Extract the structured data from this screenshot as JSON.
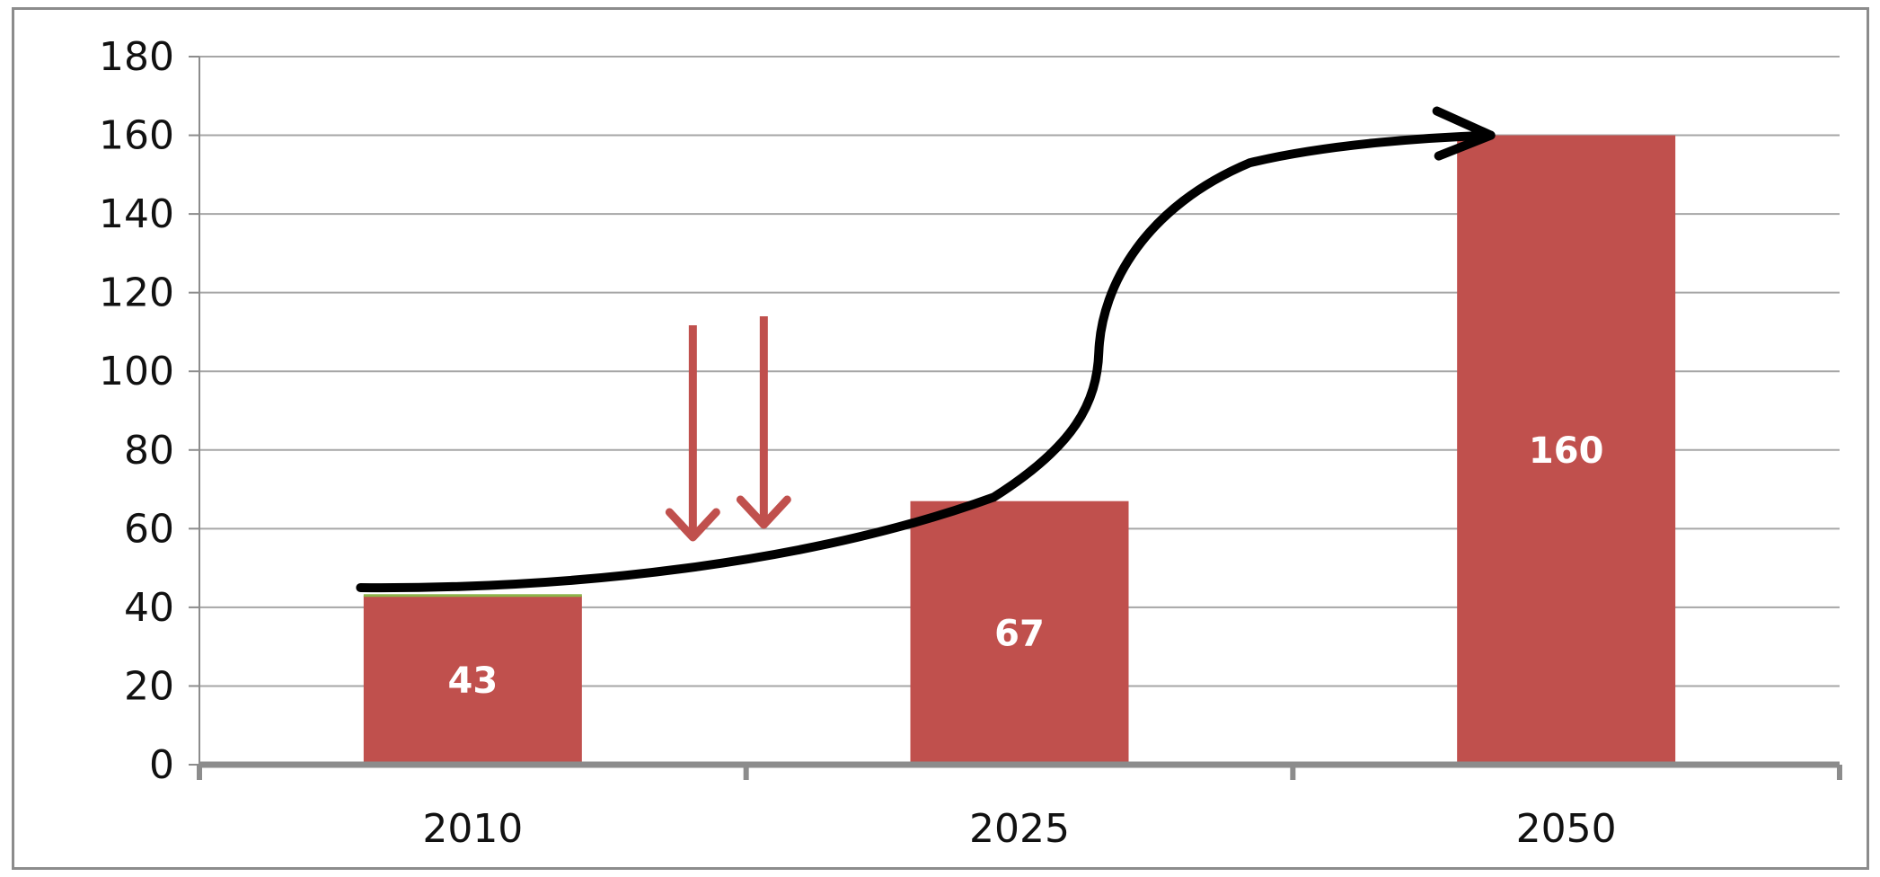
{
  "chart_data": {
    "type": "bar",
    "categories": [
      "2010",
      "2025",
      "2050"
    ],
    "values": [
      43,
      67,
      160
    ],
    "data_labels": [
      "43",
      "67",
      "160"
    ],
    "ylim": [
      0,
      180
    ],
    "yticks": [
      0,
      20,
      40,
      60,
      80,
      100,
      120,
      140,
      160,
      180
    ],
    "ytick_labels": [
      "0",
      "20",
      "40",
      "60",
      "80",
      "100",
      "120",
      "140",
      "160",
      "180"
    ],
    "grid": true,
    "legend": "none",
    "bar_color": "#c0504d",
    "annotations": [
      {
        "kind": "curved-arrow",
        "color": "#000000",
        "from_category": "2010",
        "to_category": "2050",
        "from_value": 45,
        "to_value": 160
      },
      {
        "kind": "down-arrow",
        "color": "#c0504d",
        "count": 2
      }
    ]
  }
}
